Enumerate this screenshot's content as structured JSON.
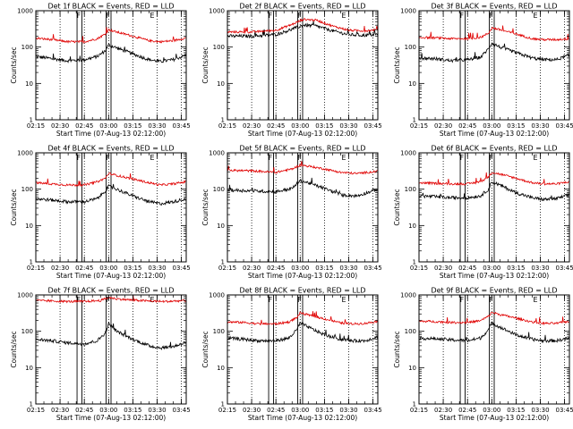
{
  "chart_data": {
    "type": "line",
    "ylabel": "Counts/sec",
    "xlabel": "Start Time (07-Aug-13 02:12:00)",
    "yscale": "log",
    "ylim": [
      1,
      1000
    ],
    "xlim_minutes": [
      15,
      108
    ],
    "x_tick_labels": [
      "02:15",
      "02:30",
      "02:45",
      "03:00",
      "03:15",
      "03:30",
      "03:45"
    ],
    "x_tick_minutes": [
      15,
      30,
      45,
      60,
      75,
      90,
      105
    ],
    "y_tick_labels": [
      "1",
      "10",
      "100",
      "1000"
    ],
    "y_tick_values": [
      1,
      10,
      100,
      1000
    ],
    "dotted_line_minutes": [
      30,
      45,
      60,
      75,
      90,
      105
    ],
    "interval_minutes": [
      [
        40.5,
        43.5
      ],
      [
        58.5,
        61.5
      ]
    ],
    "flag_labels": [
      {
        "text": "F",
        "minute": 41.5
      },
      {
        "text": "F",
        "minute": 59.5
      },
      {
        "text": "E",
        "minute": 87
      }
    ],
    "series_names": [
      "Events",
      "LLD"
    ],
    "series_colors": {
      "events": "#000000",
      "lld": "#e00000"
    },
    "panels": [
      {
        "title": "Det 1f BLACK = Events, RED = LLD",
        "events": [
          [
            15,
            55
          ],
          [
            25,
            48
          ],
          [
            35,
            42
          ],
          [
            45,
            45
          ],
          [
            53,
            55
          ],
          [
            58,
            80
          ],
          [
            60,
            115
          ],
          [
            65,
            95
          ],
          [
            75,
            65
          ],
          [
            85,
            45
          ],
          [
            92,
            40
          ],
          [
            100,
            45
          ],
          [
            108,
            60
          ]
        ],
        "lld": [
          [
            15,
            175
          ],
          [
            25,
            160
          ],
          [
            35,
            140
          ],
          [
            45,
            140
          ],
          [
            53,
            170
          ],
          [
            58,
            230
          ],
          [
            60,
            300
          ],
          [
            65,
            260
          ],
          [
            75,
            200
          ],
          [
            85,
            150
          ],
          [
            92,
            140
          ],
          [
            100,
            150
          ],
          [
            108,
            180
          ]
        ]
      },
      {
        "title": "Det 2f BLACK = Events, RED = LLD",
        "events": [
          [
            15,
            200
          ],
          [
            30,
            200
          ],
          [
            45,
            220
          ],
          [
            55,
            310
          ],
          [
            62,
            400
          ],
          [
            70,
            380
          ],
          [
            80,
            280
          ],
          [
            90,
            220
          ],
          [
            100,
            210
          ],
          [
            108,
            225
          ]
        ],
        "lld": [
          [
            15,
            260
          ],
          [
            30,
            260
          ],
          [
            45,
            290
          ],
          [
            55,
            420
          ],
          [
            62,
            580
          ],
          [
            70,
            550
          ],
          [
            80,
            380
          ],
          [
            90,
            290
          ],
          [
            100,
            280
          ],
          [
            108,
            300
          ]
        ]
      },
      {
        "title": "Det 3f BLACK = Events, RED = LLD",
        "events": [
          [
            15,
            50
          ],
          [
            25,
            48
          ],
          [
            35,
            42
          ],
          [
            45,
            45
          ],
          [
            53,
            52
          ],
          [
            58,
            90
          ],
          [
            60,
            130
          ],
          [
            65,
            100
          ],
          [
            75,
            70
          ],
          [
            85,
            50
          ],
          [
            92,
            45
          ],
          [
            100,
            45
          ],
          [
            108,
            60
          ]
        ],
        "lld": [
          [
            15,
            185
          ],
          [
            25,
            180
          ],
          [
            35,
            170
          ],
          [
            45,
            170
          ],
          [
            53,
            185
          ],
          [
            58,
            240
          ],
          [
            60,
            340
          ],
          [
            65,
            300
          ],
          [
            75,
            230
          ],
          [
            85,
            170
          ],
          [
            92,
            160
          ],
          [
            100,
            160
          ],
          [
            108,
            170
          ]
        ]
      },
      {
        "title": "Det 4f BLACK = Events, RED = LLD",
        "events": [
          [
            15,
            55
          ],
          [
            25,
            50
          ],
          [
            35,
            45
          ],
          [
            45,
            45
          ],
          [
            53,
            55
          ],
          [
            58,
            90
          ],
          [
            60,
            120
          ],
          [
            65,
            100
          ],
          [
            75,
            65
          ],
          [
            85,
            45
          ],
          [
            92,
            40
          ],
          [
            100,
            45
          ],
          [
            108,
            55
          ]
        ],
        "lld": [
          [
            15,
            150
          ],
          [
            25,
            140
          ],
          [
            35,
            130
          ],
          [
            45,
            130
          ],
          [
            53,
            160
          ],
          [
            58,
            200
          ],
          [
            60,
            270
          ],
          [
            65,
            240
          ],
          [
            75,
            190
          ],
          [
            85,
            150
          ],
          [
            92,
            130
          ],
          [
            100,
            140
          ],
          [
            108,
            160
          ]
        ]
      },
      {
        "title": "Det 5f BLACK = Events, RED = LLD",
        "events": [
          [
            15,
            95
          ],
          [
            30,
            90
          ],
          [
            45,
            85
          ],
          [
            55,
            105
          ],
          [
            60,
            170
          ],
          [
            65,
            150
          ],
          [
            75,
            105
          ],
          [
            85,
            70
          ],
          [
            95,
            65
          ],
          [
            108,
            100
          ]
        ],
        "lld": [
          [
            15,
            330
          ],
          [
            30,
            320
          ],
          [
            45,
            290
          ],
          [
            55,
            360
          ],
          [
            60,
            460
          ],
          [
            65,
            430
          ],
          [
            75,
            360
          ],
          [
            85,
            290
          ],
          [
            95,
            270
          ],
          [
            108,
            310
          ]
        ]
      },
      {
        "title": "Det 6f BLACK = Events, RED = LLD",
        "events": [
          [
            15,
            65
          ],
          [
            25,
            62
          ],
          [
            35,
            58
          ],
          [
            45,
            58
          ],
          [
            53,
            65
          ],
          [
            58,
            100
          ],
          [
            60,
            160
          ],
          [
            65,
            130
          ],
          [
            75,
            80
          ],
          [
            85,
            58
          ],
          [
            92,
            52
          ],
          [
            100,
            55
          ],
          [
            108,
            70
          ]
        ],
        "lld": [
          [
            15,
            150
          ],
          [
            25,
            145
          ],
          [
            35,
            140
          ],
          [
            45,
            140
          ],
          [
            53,
            160
          ],
          [
            58,
            220
          ],
          [
            60,
            290
          ],
          [
            65,
            260
          ],
          [
            75,
            200
          ],
          [
            85,
            150
          ],
          [
            92,
            140
          ],
          [
            100,
            140
          ],
          [
            108,
            160
          ]
        ]
      },
      {
        "title": "Det 7f BLACK = Events, RED = LLD",
        "events": [
          [
            15,
            60
          ],
          [
            25,
            55
          ],
          [
            35,
            48
          ],
          [
            45,
            45
          ],
          [
            53,
            55
          ],
          [
            58,
            90
          ],
          [
            60,
            160
          ],
          [
            65,
            100
          ],
          [
            75,
            60
          ],
          [
            85,
            40
          ],
          [
            92,
            35
          ],
          [
            100,
            38
          ],
          [
            108,
            50
          ]
        ],
        "lld": [
          [
            15,
            700
          ],
          [
            25,
            680
          ],
          [
            35,
            660
          ],
          [
            45,
            660
          ],
          [
            55,
            700
          ],
          [
            60,
            850
          ],
          [
            65,
            780
          ],
          [
            75,
            720
          ],
          [
            85,
            680
          ],
          [
            95,
            660
          ],
          [
            108,
            700
          ]
        ]
      },
      {
        "title": "Det 8f BLACK = Events, RED = LLD",
        "events": [
          [
            15,
            65
          ],
          [
            25,
            60
          ],
          [
            35,
            55
          ],
          [
            45,
            55
          ],
          [
            53,
            65
          ],
          [
            58,
            110
          ],
          [
            60,
            170
          ],
          [
            65,
            130
          ],
          [
            75,
            80
          ],
          [
            85,
            60
          ],
          [
            92,
            55
          ],
          [
            100,
            55
          ],
          [
            108,
            70
          ]
        ],
        "lld": [
          [
            15,
            180
          ],
          [
            25,
            175
          ],
          [
            35,
            160
          ],
          [
            45,
            160
          ],
          [
            53,
            180
          ],
          [
            58,
            240
          ],
          [
            60,
            320
          ],
          [
            65,
            280
          ],
          [
            75,
            220
          ],
          [
            85,
            170
          ],
          [
            92,
            160
          ],
          [
            100,
            165
          ],
          [
            108,
            190
          ]
        ]
      },
      {
        "title": "Det 9f BLACK = Events, RED = LLD",
        "events": [
          [
            15,
            65
          ],
          [
            25,
            62
          ],
          [
            35,
            58
          ],
          [
            45,
            55
          ],
          [
            53,
            65
          ],
          [
            58,
            110
          ],
          [
            60,
            170
          ],
          [
            65,
            130
          ],
          [
            75,
            80
          ],
          [
            85,
            60
          ],
          [
            92,
            55
          ],
          [
            100,
            55
          ],
          [
            108,
            65
          ]
        ],
        "lld": [
          [
            15,
            190
          ],
          [
            25,
            185
          ],
          [
            35,
            175
          ],
          [
            45,
            175
          ],
          [
            53,
            195
          ],
          [
            58,
            260
          ],
          [
            60,
            330
          ],
          [
            65,
            290
          ],
          [
            75,
            230
          ],
          [
            85,
            180
          ],
          [
            92,
            165
          ],
          [
            100,
            165
          ],
          [
            108,
            190
          ]
        ]
      }
    ]
  }
}
